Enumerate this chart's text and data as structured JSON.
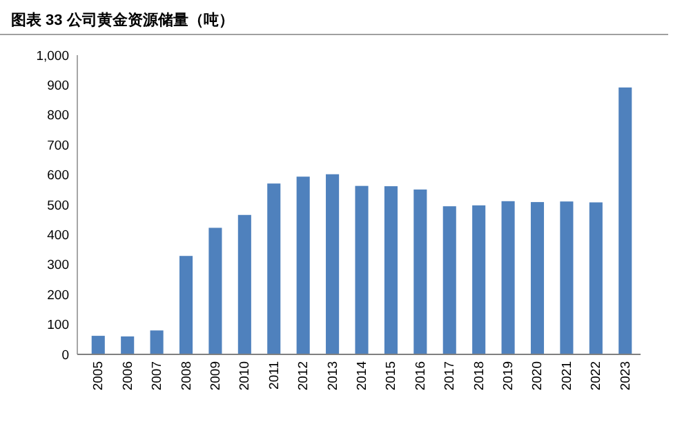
{
  "chart_data": {
    "type": "bar",
    "title": "图表 33 公司黄金资源储量（吨）",
    "categories": [
      "2005",
      "2006",
      "2007",
      "2008",
      "2009",
      "2010",
      "2011",
      "2012",
      "2013",
      "2014",
      "2015",
      "2016",
      "2017",
      "2018",
      "2019",
      "2020",
      "2021",
      "2022",
      "2023"
    ],
    "values": [
      62,
      60,
      80,
      329,
      423,
      466,
      571,
      594,
      602,
      563,
      562,
      551,
      495,
      498,
      512,
      509,
      511,
      508,
      892
    ],
    "color": "#4f81bd",
    "ylim": [
      0,
      1000
    ],
    "yticks": [
      0,
      100,
      200,
      300,
      400,
      500,
      600,
      700,
      800,
      900,
      {
        "value": 1000,
        "label": "1,000"
      }
    ],
    "grid": false
  }
}
